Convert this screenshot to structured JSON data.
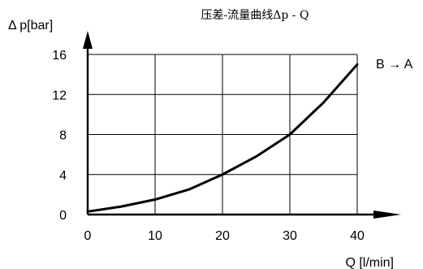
{
  "chart_data": {
    "type": "line",
    "title": "压差-流量曲线Δp - Q",
    "xlabel": "Q [l/min]",
    "ylabel": "Δ p[bar]",
    "xlim": [
      0,
      40
    ],
    "ylim": [
      0,
      16
    ],
    "x_ticks": [
      "0",
      "10",
      "20",
      "30",
      "40"
    ],
    "y_ticks": [
      "0",
      "4",
      "8",
      "12",
      "16"
    ],
    "grid": true,
    "annotation": "B → A",
    "series": [
      {
        "x": [
          0,
          5,
          10,
          15,
          20,
          25,
          30,
          35,
          40
        ],
        "y": [
          0.3,
          0.8,
          1.5,
          2.5,
          4.0,
          5.8,
          8.0,
          11.2,
          15.0
        ]
      }
    ],
    "colors": {
      "line": "#000000",
      "grid": "#000000",
      "axis": "#000000"
    }
  }
}
